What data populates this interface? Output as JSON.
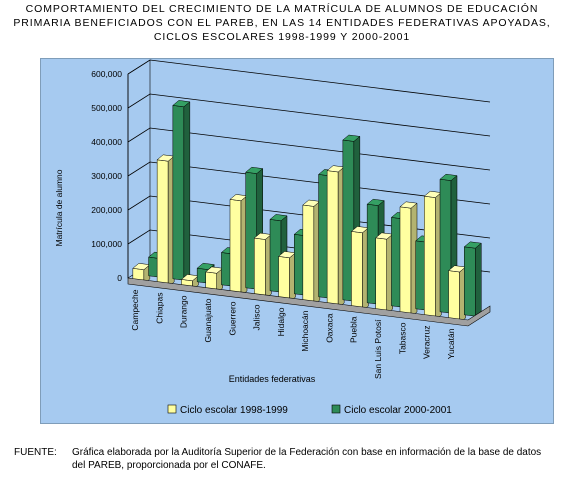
{
  "title_lines": [
    "COMPORTAMIENTO DEL CRECIMIENTO DE LA MATRÍCULA DE ALUMNOS DE EDUCACIÓN",
    "PRIMARIA BENEFICIADOS CON EL PAREB, EN LAS 14 ENTIDADES FEDERATIVAS APOYADAS,",
    "CICLOS ESCOLARES 1998-1999 Y 2000-2001"
  ],
  "source": {
    "label": "FUENTE:",
    "text": "Gráfica elaborada por la Auditoría Superior de la Federación con base en información de la base de datos del PAREB, proporcionada por el CONAFE."
  },
  "colors": {
    "panel_background": "#a6caf0",
    "series_1": "#ffffa0",
    "series_2": "#2e8b57",
    "floor": "#a0a0a0"
  },
  "chart_data": {
    "type": "bar",
    "style": "3d-clustered",
    "categories": [
      "Campeche",
      "Chiapas",
      "Durango",
      "Guanajuato",
      "Guerrero",
      "Jalisco",
      "Hidalgo",
      "Michoacán",
      "Oaxaca",
      "Puebla",
      "San Luis Potosí",
      "Tabasco",
      "Veracruz",
      "Yucatán"
    ],
    "series": [
      {
        "name": "Ciclo escolar 1998-1999",
        "color": "#ffffa0",
        "values": [
          42000,
          370000,
          27000,
          58000,
          280000,
          175000,
          130000,
          290000,
          400000,
          230000,
          220000,
          320000,
          360000,
          150000
        ]
      },
      {
        "name": "Ciclo escolar 2000-2001",
        "color": "#2e8b57",
        "values": [
          55000,
          510000,
          40000,
          95000,
          340000,
          210000,
          175000,
          360000,
          470000,
          290000,
          260000,
          200000,
          390000,
          200000
        ]
      }
    ],
    "xlabel": "Entidades federativas",
    "ylabel": "Matrícula de alumno",
    "yticks": [
      "0",
      "100,000",
      "200,000",
      "300,000",
      "400,000",
      "500,000",
      "600,000"
    ],
    "ylim": [
      0,
      600000
    ],
    "grid": true,
    "legend": "bottom"
  }
}
